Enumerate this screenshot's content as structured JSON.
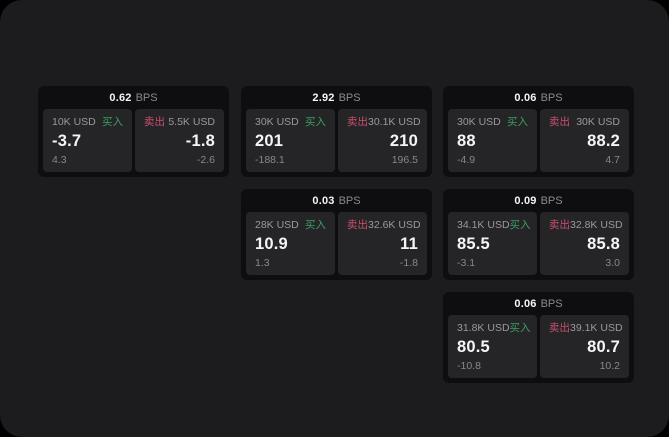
{
  "colors": {
    "surface_bg": "#1c1c1e",
    "card_bg": "#0e0e10",
    "panel_bg": "#252528",
    "value_color": "#f5f5f5",
    "unit_color": "#8a8a8f",
    "label_color": "#9a9a9e",
    "sub_color": "#87878c",
    "buy_color": "#3d9e63",
    "sell_color": "#c94f6b"
  },
  "labels": {
    "bps_unit": "BPS",
    "buy": "买入",
    "sell": "卖出"
  },
  "cards": [
    {
      "col": 0,
      "row": 0,
      "bps": "0.62",
      "buy": {
        "amount": "10K USD",
        "value": "-3.7",
        "sub": "4.3"
      },
      "sell": {
        "amount": "5.5K USD",
        "value": "-1.8",
        "sub": "-2.6"
      }
    },
    {
      "col": 1,
      "row": 0,
      "bps": "2.92",
      "buy": {
        "amount": "30K USD",
        "value": "201",
        "sub": "-188.1"
      },
      "sell": {
        "amount": "30.1K USD",
        "value": "210",
        "sub": "196.5"
      }
    },
    {
      "col": 2,
      "row": 0,
      "bps": "0.06",
      "buy": {
        "amount": "30K USD",
        "value": "88",
        "sub": "-4.9"
      },
      "sell": {
        "amount": "30K USD",
        "value": "88.2",
        "sub": "4.7"
      }
    },
    {
      "col": 1,
      "row": 1,
      "bps": "0.03",
      "buy": {
        "amount": "28K USD",
        "value": "10.9",
        "sub": "1.3"
      },
      "sell": {
        "amount": "32.6K USD",
        "value": "11",
        "sub": "-1.8"
      }
    },
    {
      "col": 2,
      "row": 1,
      "bps": "0.09",
      "buy": {
        "amount": "34.1K USD",
        "value": "85.5",
        "sub": "-3.1"
      },
      "sell": {
        "amount": "32.8K USD",
        "value": "85.8",
        "sub": "3.0"
      }
    },
    {
      "col": 2,
      "row": 2,
      "bps": "0.06",
      "buy": {
        "amount": "31.8K USD",
        "value": "80.5",
        "sub": "-10.8"
      },
      "sell": {
        "amount": "39.1K USD",
        "value": "80.7",
        "sub": "10.2"
      }
    }
  ]
}
